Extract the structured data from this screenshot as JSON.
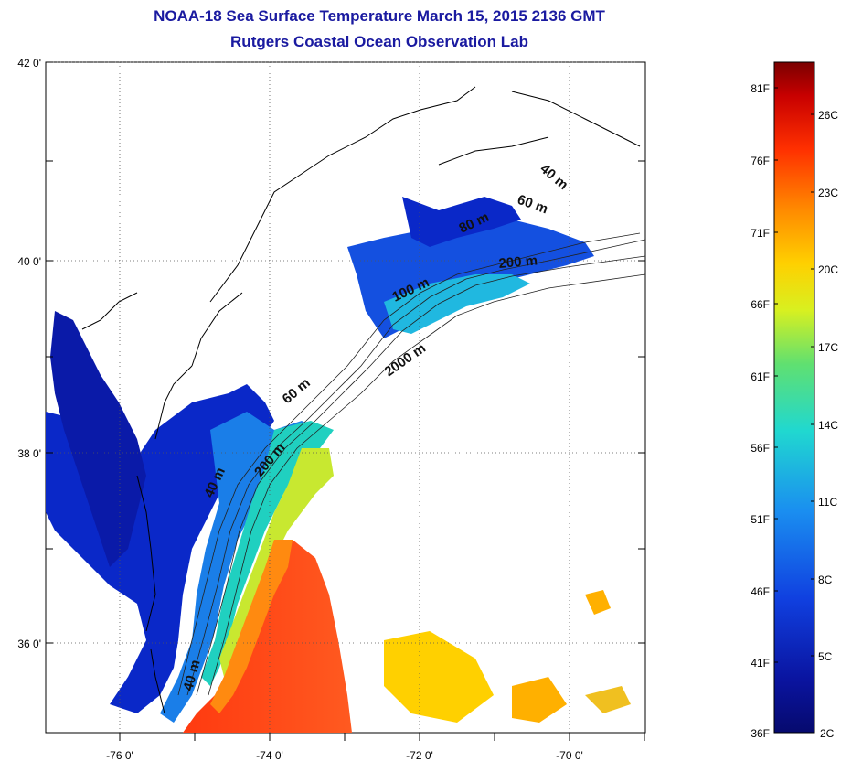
{
  "title": {
    "line1": "NOAA-18 Sea Surface Temperature March 15, 2015 2136 GMT",
    "line2": "Rutgers Coastal Ocean Observation Lab"
  },
  "map": {
    "lat_ticks": [
      {
        "label": "42 0'"
      },
      {
        "label": "40 0'"
      },
      {
        "label": "38 0'"
      },
      {
        "label": "36 0'"
      }
    ],
    "lon_ticks": [
      {
        "label": "-76 0'"
      },
      {
        "label": "-74 0'"
      },
      {
        "label": "-72 0'"
      },
      {
        "label": "-70 0'"
      }
    ],
    "isobath_labels": [
      {
        "text": "40 m"
      },
      {
        "text": "60 m"
      },
      {
        "text": "80 m"
      },
      {
        "text": "100 m"
      },
      {
        "text": "200 m"
      },
      {
        "text": "2000 m"
      },
      {
        "text": "60 m"
      },
      {
        "text": "200 m"
      },
      {
        "text": "40 m"
      },
      {
        "text": "40 m"
      }
    ]
  },
  "colorbar": {
    "fahrenheit": [
      "81F",
      "76F",
      "71F",
      "66F",
      "61F",
      "56F",
      "51F",
      "46F",
      "41F",
      "36F"
    ],
    "celsius": [
      "26C",
      "23C",
      "20C",
      "17C",
      "14C",
      "11C",
      "8C",
      "5C",
      "2C"
    ],
    "colors": [
      "#7a0000",
      "#c80000",
      "#ff3000",
      "#ff8a00",
      "#ffd000",
      "#d8f020",
      "#60e070",
      "#20d8d0",
      "#1a8ef0",
      "#1040e0",
      "#0a14a0",
      "#060a6e"
    ]
  }
}
